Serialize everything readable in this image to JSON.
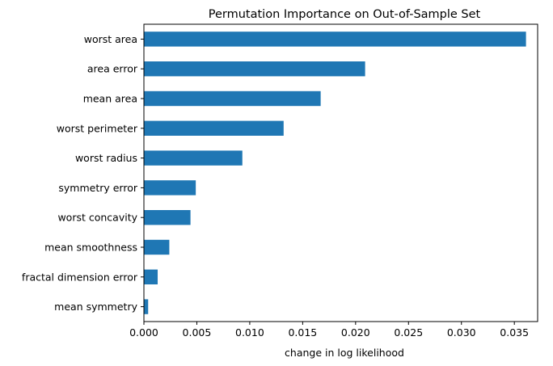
{
  "chart_data": {
    "type": "bar",
    "orientation": "horizontal",
    "title": "Permutation Importance on Out-of-Sample Set",
    "xlabel": "change in log likelihood",
    "ylabel": "",
    "categories": [
      "worst area",
      "area error",
      "mean area",
      "worst perimeter",
      "worst radius",
      "symmetry error",
      "worst concavity",
      "mean smoothness",
      "fractal dimension error",
      "mean symmetry"
    ],
    "values": [
      0.0361,
      0.0209,
      0.0167,
      0.0132,
      0.0093,
      0.0049,
      0.0044,
      0.0024,
      0.0013,
      0.0004
    ],
    "xlim": [
      0.0,
      0.0372
    ],
    "xticks": [
      0.0,
      0.005,
      0.01,
      0.015,
      0.02,
      0.025,
      0.03,
      0.035
    ],
    "xtick_labels": [
      "0.000",
      "0.005",
      "0.010",
      "0.015",
      "0.020",
      "0.025",
      "0.030",
      "0.035"
    ],
    "bar_color": "#1f77b4",
    "grid": false,
    "legend": false
  }
}
